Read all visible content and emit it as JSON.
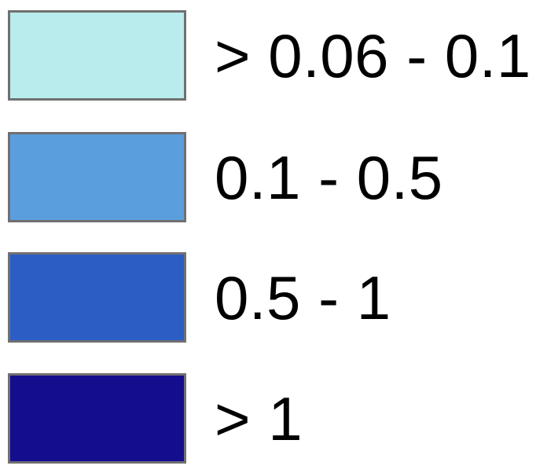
{
  "legend": {
    "background": "#ffffff",
    "swatch_border_color": "#707070",
    "text_color": "#000000",
    "entries": [
      {
        "label": "> 0.06 - 0.1",
        "color": "#B9ECEC"
      },
      {
        "label": "0.1 - 0.5",
        "color": "#5B9EDD"
      },
      {
        "label": "0.5 - 1",
        "color": "#2B5DC5"
      },
      {
        "label": "> 1",
        "color": "#140D8E"
      }
    ]
  }
}
